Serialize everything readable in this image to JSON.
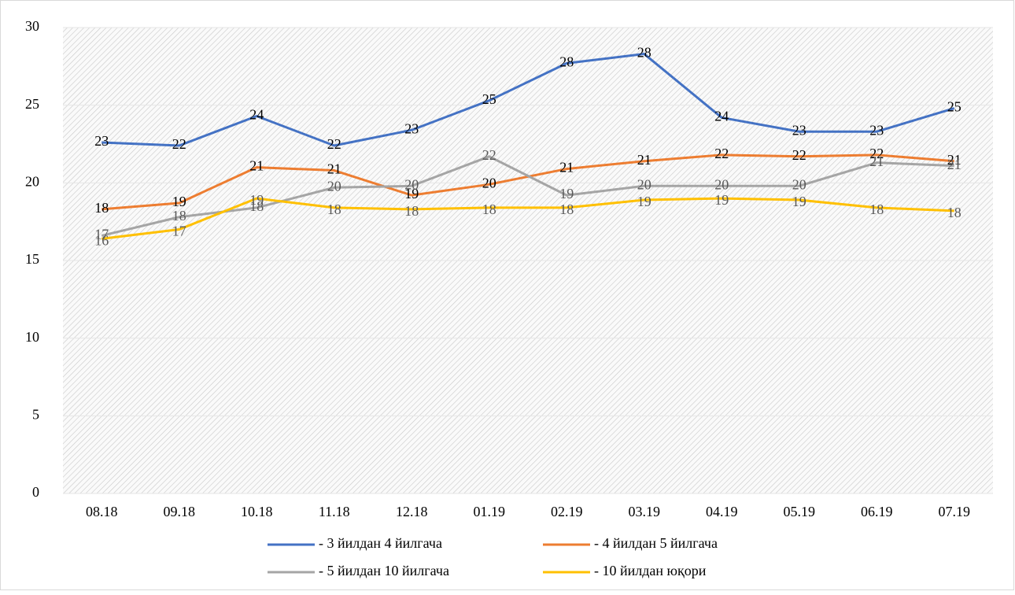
{
  "chart_data": {
    "type": "line",
    "categories": [
      "08.18",
      "09.18",
      "10.18",
      "11.18",
      "12.18",
      "01.19",
      "02.19",
      "03.19",
      "04.19",
      "05.19",
      "06.19",
      "07.19"
    ],
    "series": [
      {
        "name": "- 3 йилдан 4 йилгача",
        "color": "#4472c4",
        "values": [
          22.6,
          22.4,
          24.3,
          22.4,
          23.4,
          25.3,
          27.7,
          28.3,
          24.2,
          23.3,
          23.3,
          24.8
        ],
        "value_labels": [
          "23",
          "22",
          "24",
          "22",
          "23",
          "25",
          "28",
          "28",
          "24",
          "23",
          "23",
          "25"
        ]
      },
      {
        "name": "- 4 йилдан 5 йилгача",
        "color": "#ed7d31",
        "values": [
          18.3,
          18.7,
          21.0,
          20.8,
          19.2,
          19.9,
          20.9,
          21.4,
          21.8,
          21.7,
          21.8,
          21.4
        ],
        "value_labels": [
          "18",
          "19",
          "21",
          "21",
          "19",
          "20",
          "21",
          "21",
          "22",
          "22",
          "22",
          "21"
        ]
      },
      {
        "name": "- 5 йилдан 10 йилгача",
        "color": "#a5a5a5",
        "values": [
          16.6,
          17.8,
          18.4,
          19.7,
          19.8,
          21.7,
          19.2,
          19.8,
          19.8,
          19.8,
          21.3,
          21.1
        ],
        "value_labels": [
          "17",
          "18",
          "18",
          "20",
          "20",
          "22",
          "19",
          "20",
          "20",
          "20",
          "21",
          "21"
        ]
      },
      {
        "name": "- 10 йилдан юқори",
        "color": "#ffc000",
        "values": [
          16.4,
          17.0,
          19.0,
          18.4,
          18.3,
          18.4,
          18.4,
          18.9,
          19.0,
          18.9,
          18.4,
          18.2
        ],
        "value_labels": [
          "16",
          "17",
          "19",
          "18",
          "18",
          "18",
          "18",
          "19",
          "19",
          "19",
          "18",
          "18"
        ]
      }
    ],
    "ylim": [
      0,
      30
    ],
    "yticks": [
      0,
      5,
      10,
      15,
      20,
      25,
      30
    ],
    "grid": true,
    "legend": "bottom"
  }
}
